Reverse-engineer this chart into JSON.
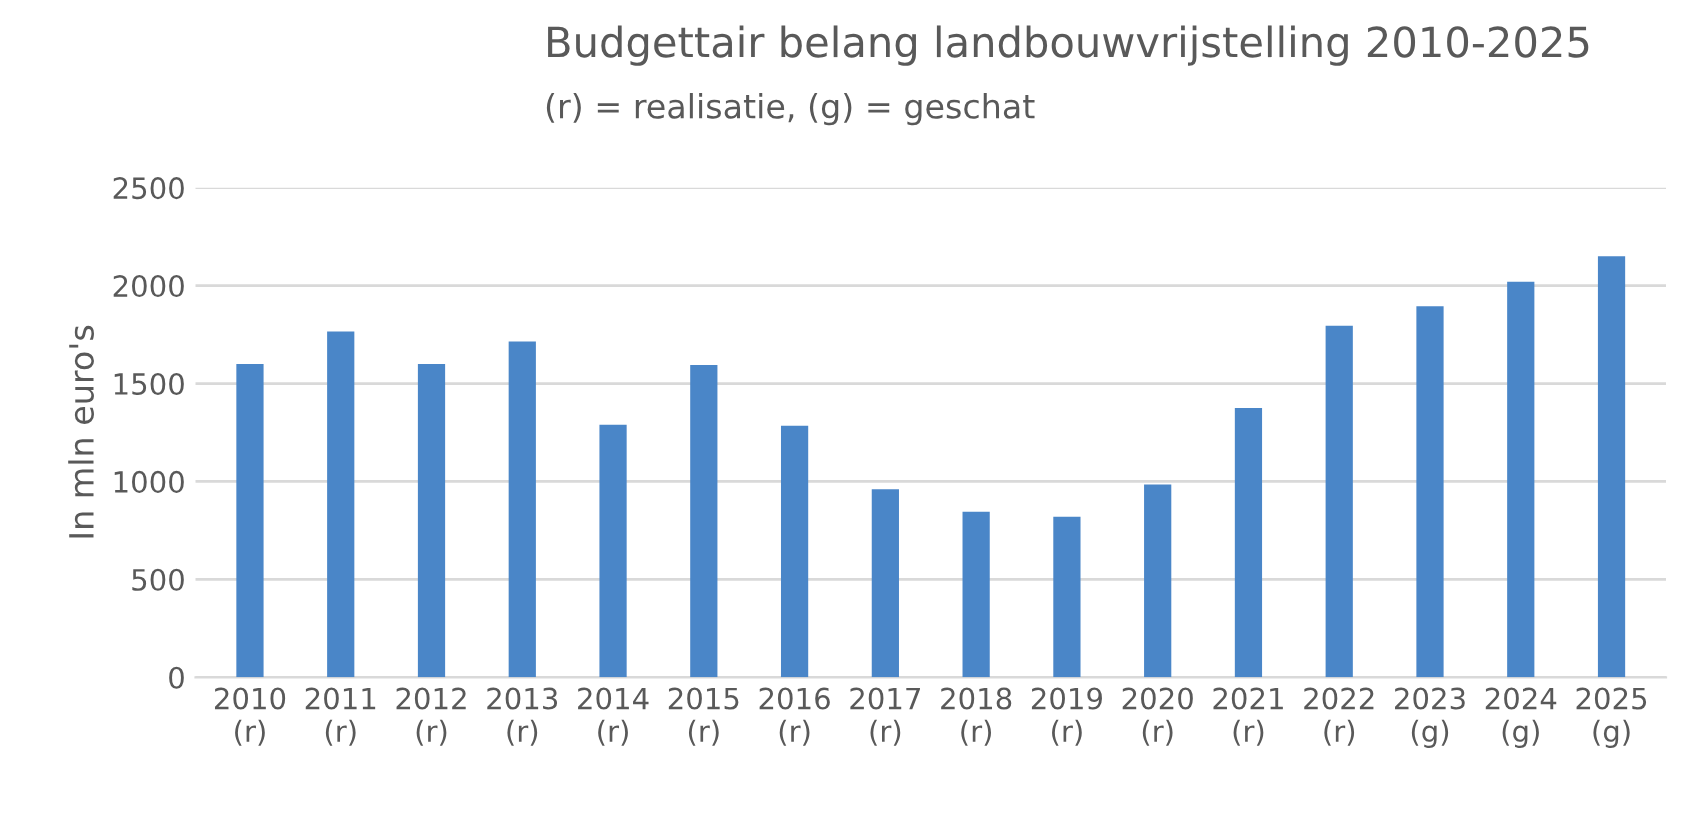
{
  "chart_data": {
    "type": "bar",
    "title": "Budgettair belang landbouwvrijstelling 2010-2025",
    "subtitle": "(r) = realisatie, (g) = geschat",
    "ylabel": "In mln euro's",
    "categories": [
      "2010\n(r)",
      "2011\n(r)",
      "2012\n(r)",
      "2013\n(r)",
      "2014\n(r)",
      "2015\n(r)",
      "2016\n(r)",
      "2017\n(r)",
      "2018\n(r)",
      "2019\n(r)",
      "2020\n(r)",
      "2021\n(r)",
      "2022\n(r)",
      "2023\n(g)",
      "2024\n(g)",
      "2025\n(g)"
    ],
    "values": [
      1600,
      1765,
      1600,
      1715,
      1290,
      1595,
      1285,
      960,
      845,
      820,
      985,
      1375,
      1795,
      1895,
      2020,
      2150
    ],
    "color": "#4a86c8",
    "ylim": [
      0,
      2500
    ],
    "yticks": [
      0,
      500,
      1000,
      1500,
      2000,
      2500
    ],
    "grid": "y"
  }
}
